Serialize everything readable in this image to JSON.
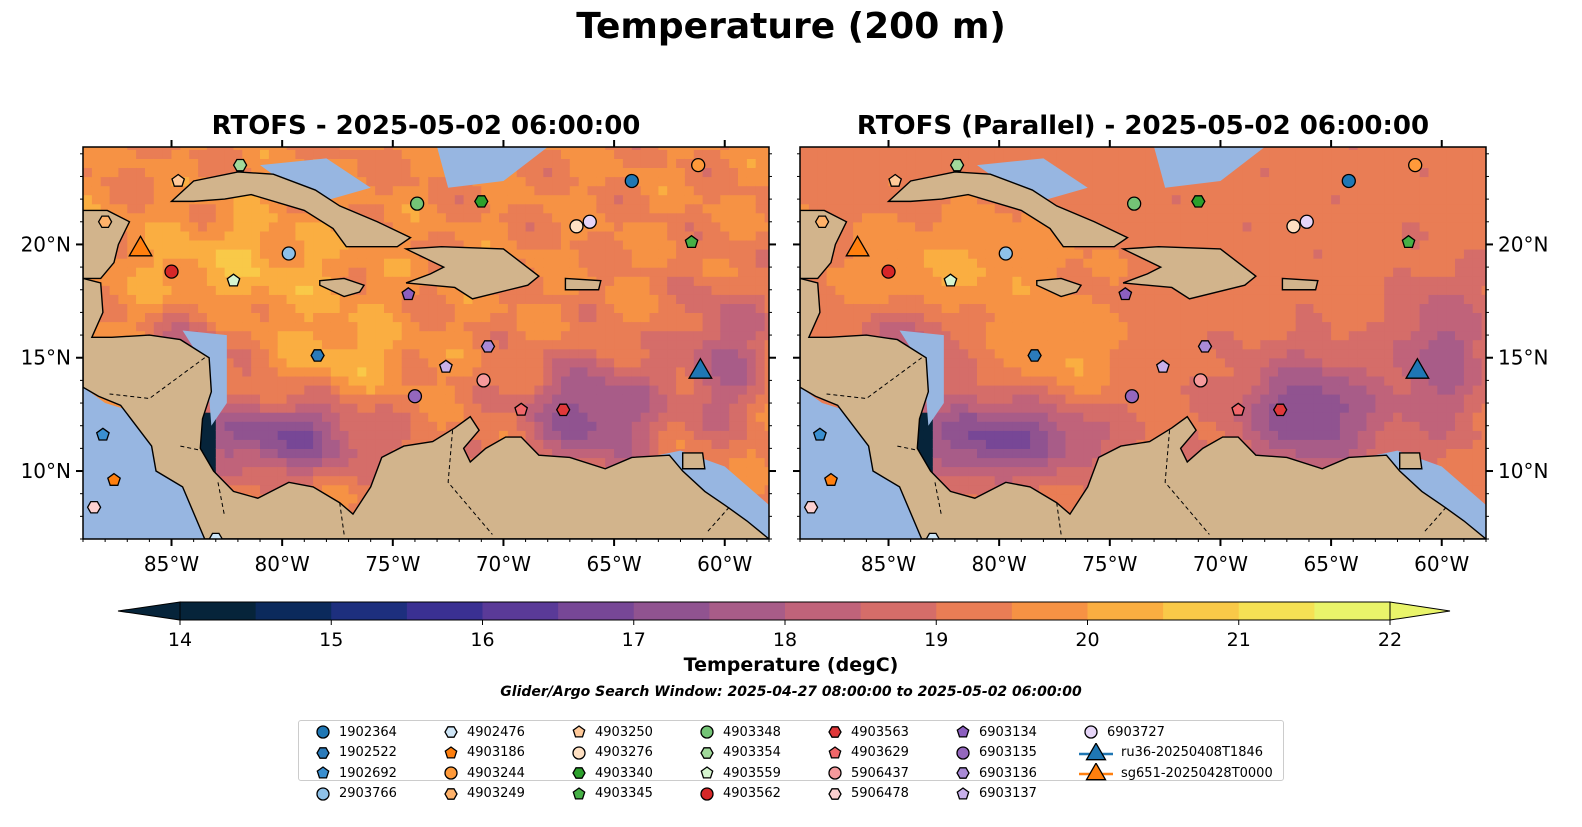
{
  "title": "Temperature (200 m)",
  "panels": [
    {
      "title": "RTOFS - 2025-05-02 06:00:00"
    },
    {
      "title": "RTOFS (Parallel) - 2025-05-02 06:00:00"
    }
  ],
  "map_extent": {
    "lon": [
      -89,
      -58
    ],
    "lat": [
      7,
      24.3
    ]
  },
  "lon_ticks": [
    -85,
    -80,
    -75,
    -70,
    -65,
    -60
  ],
  "lon_tick_labels": [
    "85°W",
    "80°W",
    "75°W",
    "70°W",
    "65°W",
    "60°W"
  ],
  "lat_ticks": [
    10,
    15,
    20
  ],
  "lat_tick_labels": [
    "10°N",
    "15°N",
    "20°N"
  ],
  "colorbar": {
    "label": "Temperature (degC)",
    "min": 14,
    "max": 22,
    "step": 0.5,
    "ticks": [
      "14",
      "15",
      "16",
      "17",
      "18",
      "19",
      "20",
      "21",
      "22"
    ],
    "colormap": "thermal",
    "extend": "both"
  },
  "search_window": "Glider/Argo Search Window: 2025-04-27 08:00:00 to 2025-05-02 06:00:00",
  "colors": {
    "land": "#d2b48c",
    "shallow": "#97b6e1"
  },
  "legend": [
    {
      "label": "1902364",
      "marker": "circle",
      "color": "#1f77b4"
    },
    {
      "label": "1902522",
      "marker": "hexagon",
      "color": "#2b7bba"
    },
    {
      "label": "1902692",
      "marker": "pentagon",
      "color": "#3a8fd0"
    },
    {
      "label": "2903766",
      "marker": "circle",
      "color": "#8ec1e8"
    },
    {
      "label": "4902476",
      "marker": "hexagon",
      "color": "#cfe6f7"
    },
    {
      "label": "4903186",
      "marker": "pentagon",
      "color": "#ff7f0e"
    },
    {
      "label": "4903244",
      "marker": "circle",
      "color": "#ff9a3a"
    },
    {
      "label": "4903249",
      "marker": "hexagon",
      "color": "#ffb26a"
    },
    {
      "label": "4903250",
      "marker": "pentagon",
      "color": "#ffc999"
    },
    {
      "label": "4903276",
      "marker": "circle",
      "color": "#ffe0c2"
    },
    {
      "label": "4903340",
      "marker": "hexagon",
      "color": "#2ca02c"
    },
    {
      "label": "4903345",
      "marker": "pentagon",
      "color": "#46b046"
    },
    {
      "label": "4903348",
      "marker": "circle",
      "color": "#74c476"
    },
    {
      "label": "4903354",
      "marker": "hexagon",
      "color": "#a1d99b"
    },
    {
      "label": "4903559",
      "marker": "pentagon",
      "color": "#d6f5cf"
    },
    {
      "label": "4903562",
      "marker": "circle",
      "color": "#d62728"
    },
    {
      "label": "4903563",
      "marker": "hexagon",
      "color": "#e0383a"
    },
    {
      "label": "4903629",
      "marker": "pentagon",
      "color": "#f0676a"
    },
    {
      "label": "5906437",
      "marker": "circle",
      "color": "#f59a9c"
    },
    {
      "label": "5906478",
      "marker": "hexagon",
      "color": "#fcd0d0"
    },
    {
      "label": "6903134",
      "marker": "pentagon",
      "color": "#8c5fbf"
    },
    {
      "label": "6903135",
      "marker": "circle",
      "color": "#9467bd"
    },
    {
      "label": "6903136",
      "marker": "hexagon",
      "color": "#a98ad6"
    },
    {
      "label": "6903137",
      "marker": "pentagon",
      "color": "#c8b0ea"
    },
    {
      "label": "6903727",
      "marker": "circle",
      "color": "#e6d5f8"
    },
    {
      "label": "ru36-20250408T1846",
      "marker": "triangle",
      "color": "#1f77b4"
    },
    {
      "label": "sg651-20250428T0000",
      "marker": "triangle",
      "color": "#ff7f0e"
    }
  ],
  "floats": [
    {
      "id": "1902364",
      "lon": -64.2,
      "lat": 22.8
    },
    {
      "id": "1902522",
      "lon": -78.4,
      "lat": 15.1
    },
    {
      "id": "1902692",
      "lon": -88.1,
      "lat": 11.6
    },
    {
      "id": "2903766",
      "lon": -79.7,
      "lat": 19.6
    },
    {
      "id": "4902476",
      "lon": -83.0,
      "lat": 7.0
    },
    {
      "id": "4903186",
      "lon": -87.6,
      "lat": 9.6
    },
    {
      "id": "4903244",
      "lon": -61.2,
      "lat": 23.5
    },
    {
      "id": "4903249",
      "lon": -88.0,
      "lat": 21.0
    },
    {
      "id": "4903250",
      "lon": -84.7,
      "lat": 22.8
    },
    {
      "id": "4903276",
      "lon": -66.7,
      "lat": 20.8
    },
    {
      "id": "4903340",
      "lon": -71.0,
      "lat": 21.9
    },
    {
      "id": "4903345",
      "lon": -61.5,
      "lat": 20.1
    },
    {
      "id": "4903348",
      "lon": -73.9,
      "lat": 21.8
    },
    {
      "id": "4903354",
      "lon": -81.9,
      "lat": 23.5
    },
    {
      "id": "4903559",
      "lon": -82.2,
      "lat": 18.4
    },
    {
      "id": "4903562",
      "lon": -85.0,
      "lat": 18.8
    },
    {
      "id": "4903563",
      "lon": -67.3,
      "lat": 12.7
    },
    {
      "id": "4903629",
      "lon": -69.2,
      "lat": 12.7
    },
    {
      "id": "5906437",
      "lon": -70.9,
      "lat": 14.0
    },
    {
      "id": "5906478",
      "lon": -88.5,
      "lat": 8.4
    },
    {
      "id": "6903134",
      "lon": -74.3,
      "lat": 17.8
    },
    {
      "id": "6903135",
      "lon": -74.0,
      "lat": 13.3
    },
    {
      "id": "6903136",
      "lon": -70.7,
      "lat": 15.5
    },
    {
      "id": "6903137",
      "lon": -72.6,
      "lat": 14.6
    },
    {
      "id": "6903727",
      "lon": -66.1,
      "lat": 21.0
    }
  ],
  "gliders": [
    {
      "id": "ru36-20250408T1846",
      "lon": -61.1,
      "lat": 14.5
    },
    {
      "id": "sg651-20250428T0000",
      "lon": -86.4,
      "lat": 19.9
    }
  ]
}
